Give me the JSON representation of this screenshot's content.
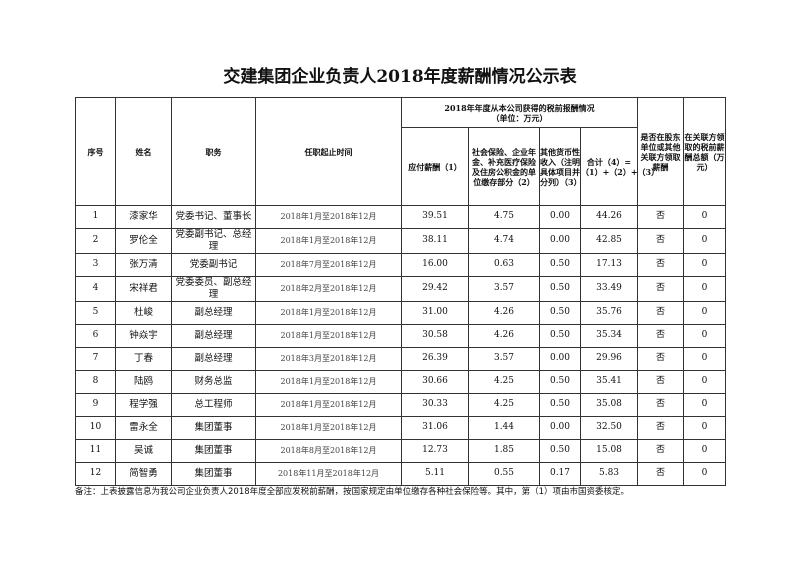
{
  "title": "交建集团企业负责人2018年度薪酬情况公示表",
  "headers": {
    "no": "序号",
    "name": "姓名",
    "position": "职务",
    "term": "任职起止时间",
    "group": "2018年年度从本公司获得的税前报酬情况",
    "unit": "（单位：万元）",
    "salary": "应付薪酬（1）",
    "insurance": "社会保险、企业年金、补充医疗保险及住房公积金的单位缴存部分（2）",
    "other": "其他货币性收入（注明具体项目并分列）（3）",
    "total": "合计（4）=（1）+（2）+（3）",
    "related": "是否在股东单位或其他关联方领取薪酬",
    "related_amount": "在关联方领取的税前薪酬总额（万元）"
  },
  "rows": [
    [
      "1",
      "漆家华",
      "党委书记、董事长",
      "2018年1月至2018年12月",
      "39.51",
      "4.75",
      "0.00",
      "44.26",
      "否",
      "0"
    ],
    [
      "2",
      "罗伦全",
      "党委副书记、总经理",
      "2018年1月至2018年12月",
      "38.11",
      "4.74",
      "0.00",
      "42.85",
      "否",
      "0"
    ],
    [
      "3",
      "张万清",
      "党委副书记",
      "2018年7月至2018年12月",
      "16.00",
      "0.63",
      "0.50",
      "17.13",
      "否",
      "0"
    ],
    [
      "4",
      "宋祥君",
      "党委委员、副总经理",
      "2018年2月至2018年12月",
      "29.42",
      "3.57",
      "0.50",
      "33.49",
      "否",
      "0"
    ],
    [
      "5",
      "杜峻",
      "副总经理",
      "2018年1月至2018年12月",
      "31.00",
      "4.26",
      "0.50",
      "35.76",
      "否",
      "0"
    ],
    [
      "6",
      "钟焱宇",
      "副总经理",
      "2018年1月至2018年12月",
      "30.58",
      "4.26",
      "0.50",
      "35.34",
      "否",
      "0"
    ],
    [
      "7",
      "丁春",
      "副总经理",
      "2018年3月至2018年12月",
      "26.39",
      "3.57",
      "0.00",
      "29.96",
      "否",
      "0"
    ],
    [
      "8",
      "陆鸥",
      "财务总监",
      "2018年1月至2018年12月",
      "30.66",
      "4.25",
      "0.50",
      "35.41",
      "否",
      "0"
    ],
    [
      "9",
      "程学强",
      "总工程师",
      "2018年1月至2018年12月",
      "30.33",
      "4.25",
      "0.50",
      "35.08",
      "否",
      "0"
    ],
    [
      "10",
      "雷永全",
      "集团董事",
      "2018年1月至2018年12月",
      "31.06",
      "1.44",
      "0.00",
      "32.50",
      "否",
      "0"
    ],
    [
      "11",
      "吴诚",
      "集团董事",
      "2018年8月至2018年12月",
      "12.73",
      "1.85",
      "0.50",
      "15.08",
      "否",
      "0"
    ],
    [
      "12",
      "简智勇",
      "集团董事",
      "2018年11月至2018年12月",
      "5.11",
      "0.55",
      "0.17",
      "5.83",
      "否",
      "0"
    ]
  ],
  "note": "备注：上表披露信息为我公司企业负责人2018年度全部应发税前薪酬，按国家规定由单位缴存各种社会保险等。其中，第（1）项由市国资委核定。"
}
